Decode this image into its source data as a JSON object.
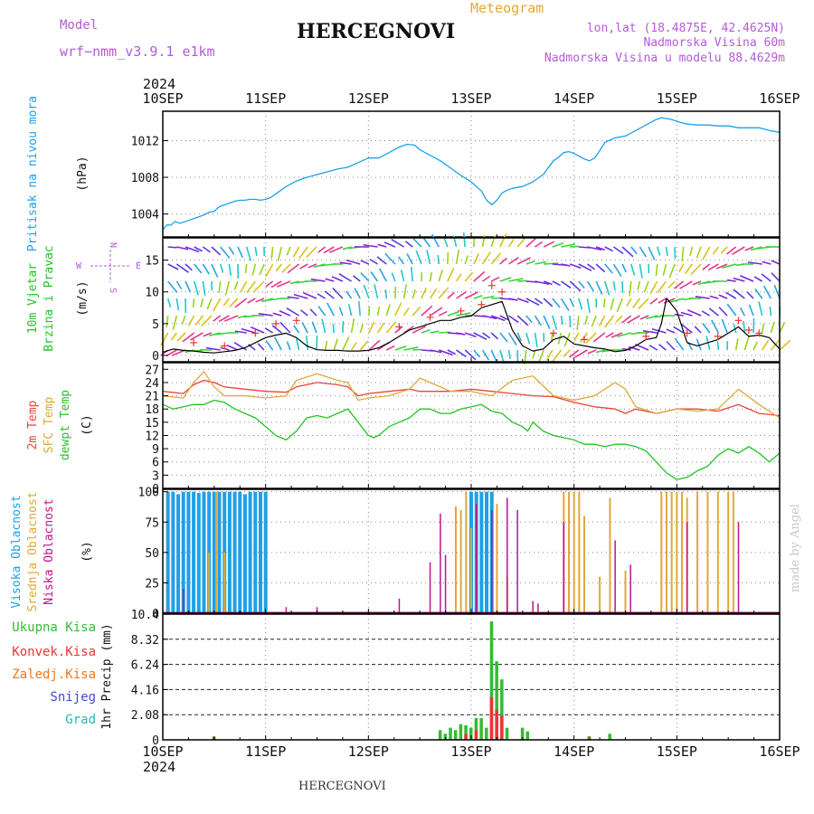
{
  "header": {
    "model_label": "Model",
    "model_name": "wrf−nmm_v3.9.1  e1km",
    "location": "HERCEGNOVI",
    "meteogram": "Meteogram",
    "lonlat": "lon,lat (18.4875E, 42.4625N)",
    "elevation": "Nadmorska Visina 60m",
    "model_elevation": "Nadmorska Visina u modelu 88.4629m",
    "footer_location": "HERCEGNOVI",
    "watermark": "made by Angel"
  },
  "colors": {
    "pressure": "#1fa0e6",
    "temp2m": "#e8443a",
    "sfc": "#e0a83a",
    "dewpt": "#22c322",
    "high_cloud": "#1fa0e6",
    "mid_cloud": "#e0a83a",
    "low_cloud": "#c0138c",
    "total_precip": "#33bb33",
    "conv_precip": "#ee3333",
    "snow": "#4444dd",
    "frozen": "#ee7722",
    "grad": "#22bbbb",
    "wind_speed": "#000000",
    "gust": "#ee3333"
  },
  "time_axis": {
    "year": "2024",
    "ticks": [
      "10SEP",
      "11SEP",
      "12SEP",
      "13SEP",
      "14SEP",
      "15SEP",
      "16SEP"
    ]
  },
  "chart_data": [
    {
      "type": "line",
      "name": "pressure",
      "ylabel": [
        "Pritisak na nivou mora",
        "(hPa)"
      ],
      "y_ticks": [
        1004,
        1008,
        1012
      ],
      "ylim": [
        1001.5,
        1015.2
      ],
      "grid": true,
      "x_days": [
        0,
        0.04,
        0.08,
        0.12,
        0.16,
        0.2,
        0.25,
        0.3,
        0.35,
        0.4,
        0.45,
        0.5,
        0.55,
        0.6,
        0.65,
        0.7,
        0.75,
        0.8,
        0.85,
        0.9,
        0.95,
        1.0,
        1.05,
        1.1,
        1.15,
        1.2,
        1.3,
        1.4,
        1.5,
        1.6,
        1.7,
        1.8,
        1.9,
        2.0,
        2.05,
        2.1,
        2.2,
        2.3,
        2.38,
        2.45,
        2.5,
        2.6,
        2.7,
        2.8,
        2.9,
        3.0,
        3.1,
        3.15,
        3.2,
        3.25,
        3.3,
        3.35,
        3.4,
        3.5,
        3.6,
        3.7,
        3.8,
        3.85,
        3.9,
        3.95,
        4.0,
        4.05,
        4.1,
        4.15,
        4.2,
        4.25,
        4.3,
        4.4,
        4.5,
        4.6,
        4.7,
        4.8,
        4.85,
        4.9,
        4.95,
        5.0,
        5.1,
        5.2,
        5.3,
        5.4,
        5.5,
        5.6,
        5.7,
        5.8,
        5.9,
        6.0
      ],
      "values": [
        1002.3,
        1002.8,
        1002.8,
        1003.2,
        1003.0,
        1003.1,
        1003.3,
        1003.5,
        1003.7,
        1003.9,
        1004.2,
        1004.3,
        1004.8,
        1005.0,
        1005.2,
        1005.4,
        1005.5,
        1005.5,
        1005.6,
        1005.6,
        1005.5,
        1005.6,
        1005.8,
        1006.2,
        1006.6,
        1007.0,
        1007.6,
        1008.0,
        1008.3,
        1008.6,
        1008.9,
        1009.1,
        1009.6,
        1010.1,
        1010.1,
        1010.1,
        1010.7,
        1011.3,
        1011.6,
        1011.5,
        1011.0,
        1010.4,
        1009.8,
        1009.0,
        1008.2,
        1007.5,
        1006.5,
        1005.5,
        1005.0,
        1005.5,
        1006.3,
        1006.6,
        1006.8,
        1007.0,
        1007.5,
        1008.3,
        1009.8,
        1010.2,
        1010.7,
        1010.8,
        1010.6,
        1010.3,
        1010.0,
        1009.8,
        1010.1,
        1010.9,
        1011.8,
        1012.3,
        1012.5,
        1013.1,
        1013.7,
        1014.3,
        1014.5,
        1014.4,
        1014.3,
        1014.1,
        1013.8,
        1013.7,
        1013.7,
        1013.6,
        1013.6,
        1013.4,
        1013.4,
        1013.4,
        1013.1,
        1012.9
      ]
    },
    {
      "type": "line",
      "name": "wind",
      "ylabel": [
        "10m Vjetar",
        "Brzina i Pravac",
        "(m/s)"
      ],
      "compass": {
        "n": "N",
        "s": "S",
        "e": "E",
        "w": "W"
      },
      "y_ticks": [
        0,
        5,
        10,
        15
      ],
      "ylim": [
        -1,
        18.5
      ],
      "grid": true,
      "x_days": [
        0,
        0.1,
        0.2,
        0.3,
        0.4,
        0.5,
        0.6,
        0.7,
        0.8,
        0.9,
        1.0,
        1.1,
        1.2,
        1.3,
        1.4,
        1.5,
        1.6,
        1.7,
        1.8,
        1.9,
        2.0,
        2.1,
        2.2,
        2.3,
        2.4,
        2.5,
        2.6,
        2.7,
        2.8,
        2.9,
        3.0,
        3.1,
        3.2,
        3.3,
        3.4,
        3.5,
        3.6,
        3.7,
        3.8,
        3.9,
        4.0,
        4.1,
        4.2,
        4.3,
        4.4,
        4.5,
        4.6,
        4.7,
        4.8,
        4.85,
        4.9,
        5.0,
        5.1,
        5.2,
        5.3,
        5.4,
        5.5,
        5.6,
        5.7,
        5.8,
        5.9,
        6.0
      ],
      "speed": [
        0.5,
        1.0,
        0.8,
        0.7,
        0.5,
        0.4,
        0.6,
        0.8,
        1.2,
        2.0,
        2.8,
        3.2,
        3.5,
        2.8,
        1.5,
        0.9,
        0.8,
        0.8,
        0.7,
        0.7,
        0.8,
        1.2,
        2.0,
        3.0,
        4.0,
        4.5,
        5.0,
        5.5,
        5.5,
        6.0,
        6.2,
        7.5,
        8.0,
        8.5,
        4.0,
        1.5,
        0.7,
        1.0,
        2.5,
        3.0,
        1.8,
        1.5,
        1.2,
        1.0,
        0.6,
        0.8,
        1.5,
        2.5,
        2.8,
        5.0,
        9.0,
        7.0,
        2.0,
        1.5,
        2.0,
        2.5,
        3.5,
        4.5,
        3.0,
        3.2,
        2.8,
        1.0
      ],
      "gust_x": [
        0.3,
        0.6,
        0.9,
        1.1,
        1.3,
        2.3,
        2.6,
        2.9,
        3.1,
        3.2,
        3.3,
        3.8,
        4.1,
        4.7,
        5.1,
        5.4,
        5.6,
        5.7,
        5.8
      ],
      "gust": [
        2.0,
        1.5,
        3.5,
        5.0,
        5.5,
        4.5,
        6.0,
        7.0,
        8.0,
        11.0,
        10.0,
        3.5,
        2.5,
        3.0,
        3.5,
        3.0,
        5.5,
        4.0,
        3.5
      ]
    },
    {
      "type": "line",
      "name": "temperature",
      "ylabel": [
        "2m Temp",
        "SFC Temp",
        "dewpt Temp",
        "(C)"
      ],
      "y_ticks": [
        0,
        3,
        6,
        9,
        12,
        15,
        18,
        21,
        24,
        27
      ],
      "ylim": [
        0,
        28.5
      ],
      "grid": true,
      "series": [
        {
          "name": "2m Temp",
          "x": [
            0,
            0.2,
            0.3,
            0.4,
            0.5,
            0.6,
            0.8,
            1.0,
            1.2,
            1.3,
            1.5,
            1.7,
            1.8,
            1.9,
            2.0,
            2.2,
            2.4,
            2.5,
            2.6,
            2.8,
            3.0,
            3.2,
            3.4,
            3.6,
            3.8,
            4.0,
            4.2,
            4.4,
            4.5,
            4.6,
            4.8,
            5.0,
            5.2,
            5.4,
            5.6,
            5.8,
            6.0
          ],
          "values": [
            22,
            21.5,
            23.5,
            24.5,
            24,
            23,
            22.5,
            22,
            21.8,
            23,
            24,
            23.5,
            23,
            21,
            21.5,
            22,
            22.5,
            22,
            22,
            22,
            22.5,
            22,
            21.5,
            21,
            20.8,
            19.5,
            18.5,
            18,
            17,
            18,
            17,
            18,
            18,
            17.5,
            19,
            17,
            16.5
          ]
        },
        {
          "name": "SFC Temp",
          "x": [
            0,
            0.2,
            0.3,
            0.4,
            0.5,
            0.6,
            0.8,
            1.0,
            1.2,
            1.3,
            1.5,
            1.7,
            1.8,
            1.9,
            2.0,
            2.2,
            2.4,
            2.5,
            2.6,
            2.8,
            3.0,
            3.2,
            3.4,
            3.6,
            3.8,
            4.0,
            4.2,
            4.4,
            4.5,
            4.6,
            4.8,
            5.0,
            5.2,
            5.4,
            5.6,
            5.8,
            6.0
          ],
          "values": [
            21,
            20.5,
            24,
            26.5,
            23,
            21,
            21,
            20.5,
            21,
            24.5,
            26,
            24.5,
            24,
            20,
            20.5,
            21,
            22.5,
            25,
            24,
            22,
            22,
            21,
            24.5,
            25.5,
            21,
            20,
            21,
            24,
            22.5,
            18.5,
            17,
            18,
            17.5,
            18,
            22.5,
            19,
            16
          ]
        },
        {
          "name": "dewpt Temp",
          "x": [
            0,
            0.1,
            0.2,
            0.3,
            0.4,
            0.5,
            0.6,
            0.7,
            0.8,
            0.9,
            1.0,
            1.1,
            1.2,
            1.3,
            1.4,
            1.5,
            1.6,
            1.7,
            1.8,
            1.9,
            2.0,
            2.05,
            2.1,
            2.2,
            2.3,
            2.4,
            2.5,
            2.6,
            2.7,
            2.8,
            2.9,
            3.0,
            3.1,
            3.2,
            3.3,
            3.4,
            3.5,
            3.55,
            3.6,
            3.7,
            3.8,
            3.9,
            4.0,
            4.1,
            4.2,
            4.3,
            4.4,
            4.5,
            4.6,
            4.7,
            4.8,
            4.9,
            5.0,
            5.1,
            5.2,
            5.3,
            5.4,
            5.5,
            5.6,
            5.7,
            5.8,
            5.9,
            6.0
          ],
          "values": [
            19,
            18,
            18.5,
            19,
            19,
            20,
            19.5,
            18,
            17,
            16,
            14,
            12,
            11,
            13,
            16,
            16.5,
            16,
            17,
            18,
            15,
            12,
            11.5,
            12,
            14,
            15,
            16,
            18,
            18,
            17,
            17,
            18,
            18.5,
            19,
            17.5,
            17,
            15,
            14,
            13,
            15,
            13,
            12,
            11.5,
            11,
            10,
            10,
            9.5,
            10,
            10,
            9.5,
            8.5,
            6,
            3.5,
            2,
            2.5,
            4,
            5,
            7.5,
            9,
            8,
            9.5,
            8,
            6,
            8
          ]
        }
      ]
    },
    {
      "type": "bar",
      "name": "cloud",
      "ylabel": [
        "Visoka Oblacnost",
        "Srednja Oblacnost",
        "Niska Oblacnost",
        "(%)"
      ],
      "y_ticks": [
        0,
        25,
        50,
        75,
        100
      ],
      "ylim": [
        0,
        102
      ],
      "grid": true,
      "series": [
        {
          "name": "Visoka Oblacnost",
          "x": [
            0.05,
            0.1,
            0.15,
            0.2,
            0.25,
            0.3,
            0.35,
            0.4,
            0.45,
            0.5,
            0.55,
            0.6,
            0.65,
            0.7,
            0.75,
            0.8,
            0.85,
            0.9,
            0.95,
            1.0,
            3.0,
            3.05,
            3.1,
            3.15,
            3.2
          ],
          "values": [
            100,
            100,
            98,
            100,
            100,
            100,
            99,
            100,
            100,
            100,
            100,
            100,
            100,
            100,
            100,
            98,
            100,
            100,
            100,
            100,
            100,
            100,
            100,
            100,
            100
          ]
        },
        {
          "name": "Srednja Oblacnost",
          "x": [
            0.45,
            0.52,
            0.6,
            2.85,
            2.9,
            2.95,
            3.0,
            3.25,
            3.35,
            3.9,
            3.95,
            4.0,
            4.05,
            4.1,
            4.25,
            4.35,
            4.5,
            4.85,
            4.9,
            4.95,
            5.0,
            5.05,
            5.1,
            5.2,
            5.3,
            5.4,
            5.5,
            5.55
          ],
          "values": [
            50,
            100,
            50,
            88,
            85,
            100,
            70,
            90,
            30,
            100,
            100,
            100,
            100,
            80,
            30,
            95,
            35,
            100,
            100,
            100,
            100,
            100,
            95,
            100,
            100,
            100,
            100,
            100
          ]
        },
        {
          "name": "Niska Oblacnost",
          "x": [
            0.2,
            1.2,
            1.5,
            2.3,
            2.6,
            2.7,
            2.75,
            3.05,
            3.2,
            3.35,
            3.45,
            3.6,
            3.65,
            3.9,
            4.4,
            4.55,
            5.1,
            5.6
          ],
          "values": [
            20,
            5,
            5,
            12,
            42,
            82,
            48,
            90,
            85,
            95,
            85,
            10,
            8,
            75,
            60,
            40,
            75,
            75
          ]
        }
      ]
    },
    {
      "type": "bar",
      "name": "precip",
      "ylabel": [
        "1hr Precip (mm)"
      ],
      "legend": [
        "Ukupna Kisa",
        "Konvek.Kisa",
        "Zaledj.Kisa",
        "Snijeg",
        "Grad"
      ],
      "y_ticks": [
        "0",
        "2.08",
        "4.16",
        "6.24",
        "8.32",
        "10.4"
      ],
      "ylim": [
        0,
        10.4
      ],
      "grid": true,
      "series": [
        {
          "name": "Ukupna Kisa",
          "x": [
            0.5,
            2.7,
            2.75,
            2.8,
            2.85,
            2.9,
            2.95,
            3.0,
            3.05,
            3.1,
            3.15,
            3.2,
            3.25,
            3.3,
            3.35,
            3.5,
            3.55,
            4.15,
            4.35
          ],
          "values": [
            0.3,
            0.8,
            0.5,
            1.0,
            0.8,
            1.3,
            1.2,
            1.0,
            1.8,
            1.8,
            1.0,
            9.8,
            6.5,
            5.0,
            1.0,
            1.0,
            0.7,
            0.3,
            0.5
          ]
        },
        {
          "name": "Konvek.Kisa",
          "x": [
            0.5,
            2.95,
            3.05,
            3.2,
            3.25,
            3.3,
            4.15
          ],
          "values": [
            0.2,
            0.5,
            0.8,
            3.5,
            2.5,
            2.0,
            0.2
          ]
        }
      ]
    }
  ]
}
